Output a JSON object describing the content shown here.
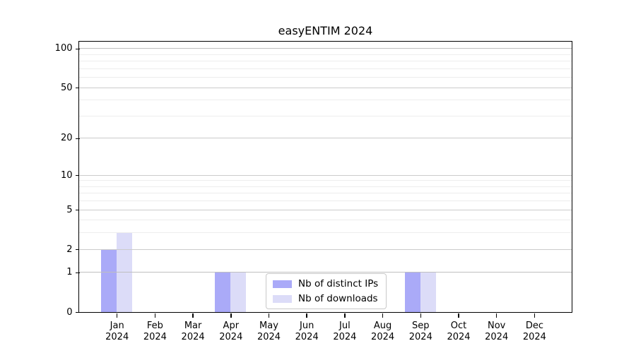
{
  "chart_data": {
    "type": "bar",
    "title": "easyENTIM 2024",
    "y_scale": "log10(1+y)",
    "ylim": [
      0,
      113
    ],
    "grid": true,
    "legend_position": "lower center",
    "categories": [
      {
        "month": "Jan",
        "year": "2024"
      },
      {
        "month": "Feb",
        "year": "2024"
      },
      {
        "month": "Mar",
        "year": "2024"
      },
      {
        "month": "Apr",
        "year": "2024"
      },
      {
        "month": "May",
        "year": "2024"
      },
      {
        "month": "Jun",
        "year": "2024"
      },
      {
        "month": "Jul",
        "year": "2024"
      },
      {
        "month": "Aug",
        "year": "2024"
      },
      {
        "month": "Sep",
        "year": "2024"
      },
      {
        "month": "Oct",
        "year": "2024"
      },
      {
        "month": "Nov",
        "year": "2024"
      },
      {
        "month": "Dec",
        "year": "2024"
      }
    ],
    "series": [
      {
        "name": "Nb of distinct IPs",
        "color": "#aaaaf8",
        "values": [
          2,
          0,
          0,
          1,
          0,
          0,
          0,
          0,
          1,
          0,
          0,
          0
        ]
      },
      {
        "name": "Nb of downloads",
        "color": "#dcdcf8",
        "values": [
          3,
          0,
          0,
          1,
          0,
          0,
          0,
          0,
          1,
          0,
          0,
          0
        ]
      }
    ],
    "y_ticks": [
      0,
      1,
      2,
      5,
      10,
      20,
      50,
      100
    ],
    "y_minor_ticks": [
      3,
      4,
      6,
      7,
      8,
      9,
      30,
      40,
      60,
      70,
      80,
      90
    ]
  }
}
